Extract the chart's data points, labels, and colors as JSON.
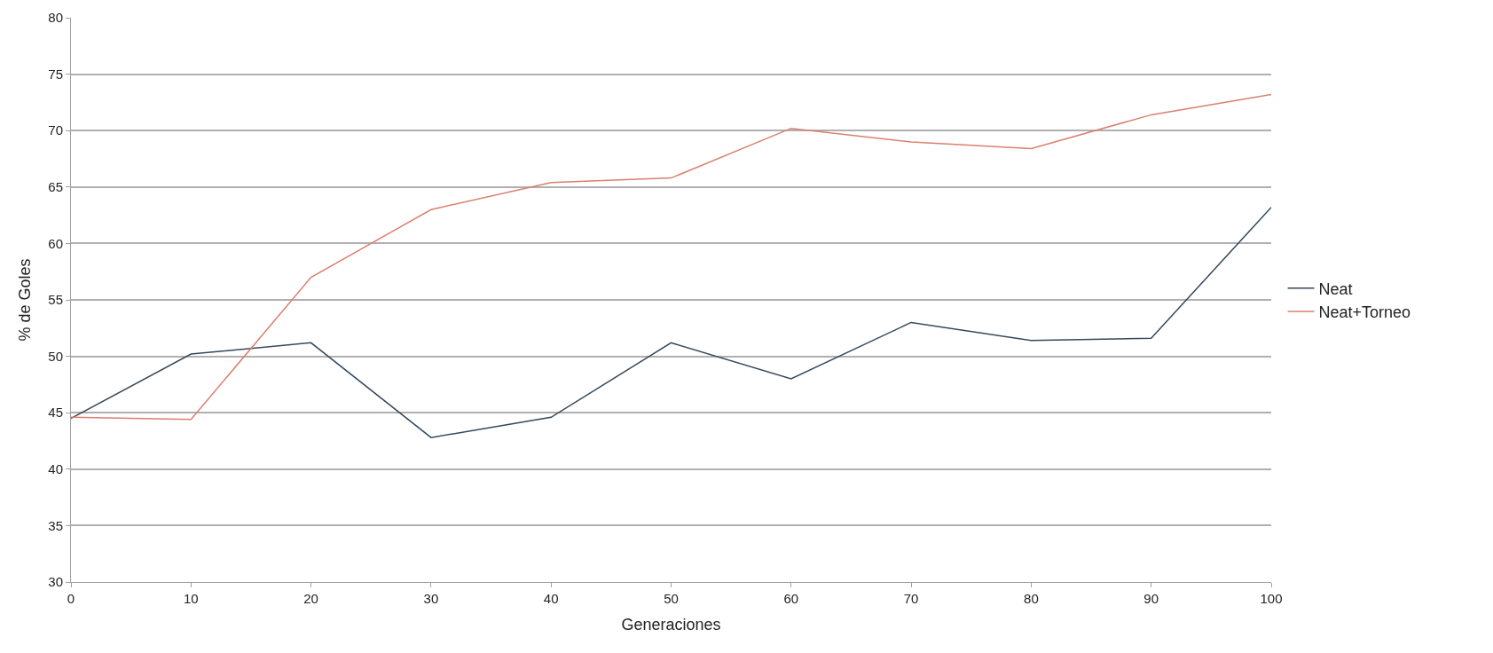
{
  "chart_data": {
    "type": "line",
    "xlabel": "Generaciones",
    "ylabel": "% de Goles",
    "x": [
      0,
      10,
      20,
      30,
      40,
      50,
      60,
      70,
      80,
      90,
      100
    ],
    "series": [
      {
        "name": "Neat",
        "color": "#34495a",
        "values": [
          44.5,
          50.2,
          51.2,
          42.8,
          44.6,
          51.2,
          48.0,
          53.0,
          51.4,
          51.6,
          63.2
        ]
      },
      {
        "name": "Neat+Torneo",
        "color": "#d9806f",
        "values": [
          44.6,
          44.4,
          57.0,
          63.0,
          65.4,
          65.8,
          70.2,
          69.0,
          68.4,
          71.4,
          73.2
        ]
      }
    ],
    "xlim": [
      0,
      100
    ],
    "xticks": [
      0,
      10,
      20,
      30,
      40,
      50,
      60,
      70,
      80,
      90,
      100
    ],
    "ylim": [
      30,
      80
    ],
    "yticks": [
      30,
      35,
      40,
      45,
      50,
      55,
      60,
      65,
      70,
      75,
      80
    ],
    "grid": "y",
    "legend": "right",
    "marker": "none",
    "line_style": "solid"
  }
}
